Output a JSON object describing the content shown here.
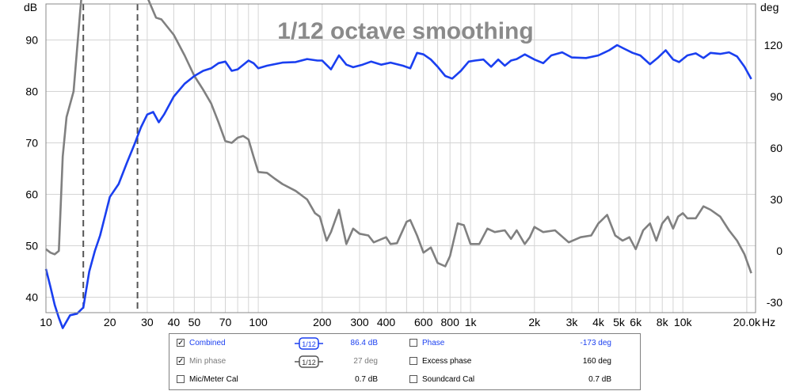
{
  "chart_data": {
    "type": "line",
    "title": "1/12 octave smoothing",
    "xscale": "log",
    "xlim": [
      10,
      22000
    ],
    "xlabel": "Hz",
    "x_tick_labels": [
      "10",
      "20",
      "30",
      "40",
      "50",
      "70",
      "100",
      "200",
      "300",
      "400",
      "600",
      "800",
      "1k",
      "2k",
      "3k",
      "4k",
      "5k",
      "6k",
      "8k",
      "10k",
      "20.0k"
    ],
    "x_tick_values": [
      10,
      20,
      30,
      40,
      50,
      70,
      100,
      200,
      300,
      400,
      600,
      800,
      1000,
      2000,
      3000,
      4000,
      5000,
      6000,
      8000,
      10000,
      20000
    ],
    "ylabel": "dB",
    "ylim": [
      37,
      97
    ],
    "y_ticks": [
      40,
      50,
      60,
      70,
      80,
      90
    ],
    "y2label": "deg",
    "y2lim": [
      -36,
      144
    ],
    "y2_ticks": [
      -30,
      0,
      30,
      60,
      90,
      120
    ],
    "grid": true,
    "markers_hz": [
      15,
      27
    ],
    "series": [
      {
        "name": "Combined",
        "color": "#1a3ff0",
        "axis": "left",
        "points": [
          [
            10,
            45.5
          ],
          [
            10.5,
            42
          ],
          [
            11,
            38.5
          ],
          [
            11.5,
            36
          ],
          [
            12,
            34
          ],
          [
            13,
            36.5
          ],
          [
            14,
            36.8
          ],
          [
            15,
            38
          ],
          [
            16,
            45
          ],
          [
            17,
            49
          ],
          [
            18,
            52
          ],
          [
            20,
            59.5
          ],
          [
            22,
            62
          ],
          [
            24,
            66
          ],
          [
            26,
            69.5
          ],
          [
            28,
            73
          ],
          [
            30,
            75.5
          ],
          [
            32,
            76
          ],
          [
            34,
            74
          ],
          [
            36,
            75.5
          ],
          [
            40,
            79
          ],
          [
            45,
            81.5
          ],
          [
            50,
            83
          ],
          [
            55,
            84
          ],
          [
            60,
            84.5
          ],
          [
            65,
            85.5
          ],
          [
            70,
            85.8
          ],
          [
            75,
            84
          ],
          [
            80,
            84.3
          ],
          [
            90,
            86
          ],
          [
            95,
            85.5
          ],
          [
            100,
            84.5
          ],
          [
            110,
            85
          ],
          [
            130,
            85.6
          ],
          [
            150,
            85.7
          ],
          [
            170,
            86.3
          ],
          [
            190,
            86
          ],
          [
            200,
            86
          ],
          [
            220,
            84.3
          ],
          [
            240,
            87
          ],
          [
            260,
            85.2
          ],
          [
            280,
            84.7
          ],
          [
            310,
            85.2
          ],
          [
            340,
            85.8
          ],
          [
            380,
            85.2
          ],
          [
            420,
            85.6
          ],
          [
            480,
            85
          ],
          [
            520,
            84.5
          ],
          [
            560,
            87.5
          ],
          [
            600,
            87.2
          ],
          [
            650,
            86.2
          ],
          [
            700,
            84.8
          ],
          [
            760,
            83
          ],
          [
            820,
            82.5
          ],
          [
            900,
            84
          ],
          [
            980,
            85.8
          ],
          [
            1050,
            86
          ],
          [
            1150,
            86.2
          ],
          [
            1250,
            84.8
          ],
          [
            1350,
            86.2
          ],
          [
            1450,
            85
          ],
          [
            1550,
            86
          ],
          [
            1650,
            86.3
          ],
          [
            1800,
            87.2
          ],
          [
            2000,
            86.2
          ],
          [
            2200,
            85.5
          ],
          [
            2400,
            87
          ],
          [
            2700,
            87.6
          ],
          [
            3000,
            86.6
          ],
          [
            3500,
            86.5
          ],
          [
            4000,
            87
          ],
          [
            4500,
            88
          ],
          [
            4900,
            89
          ],
          [
            5300,
            88.3
          ],
          [
            5800,
            87.5
          ],
          [
            6300,
            87
          ],
          [
            7000,
            85.3
          ],
          [
            7600,
            86.5
          ],
          [
            8300,
            88
          ],
          [
            9000,
            86.2
          ],
          [
            9600,
            85.7
          ],
          [
            10500,
            87
          ],
          [
            11500,
            87.4
          ],
          [
            12500,
            86.5
          ],
          [
            13500,
            87.5
          ],
          [
            15000,
            87.3
          ],
          [
            16500,
            87.6
          ],
          [
            18000,
            86.8
          ],
          [
            19500,
            84.8
          ],
          [
            21000,
            82.4
          ]
        ]
      },
      {
        "name": "Min phase",
        "color": "#808080",
        "axis": "right",
        "points": [
          [
            10,
            1
          ],
          [
            10.5,
            -1
          ],
          [
            11,
            -2
          ],
          [
            11.5,
            0
          ],
          [
            12,
            55
          ],
          [
            12.5,
            78
          ],
          [
            13.5,
            93
          ],
          [
            14.5,
            140
          ],
          [
            15,
            160
          ],
          [
            30,
            148
          ],
          [
            33,
            136
          ],
          [
            35,
            135
          ],
          [
            40,
            126
          ],
          [
            45,
            114
          ],
          [
            50,
            102
          ],
          [
            55,
            94
          ],
          [
            60,
            86
          ],
          [
            65,
            75
          ],
          [
            70,
            64
          ],
          [
            75,
            63
          ],
          [
            80,
            66
          ],
          [
            85,
            67
          ],
          [
            90,
            65
          ],
          [
            95,
            55
          ],
          [
            100,
            46
          ],
          [
            110,
            45.5
          ],
          [
            120,
            42
          ],
          [
            130,
            39
          ],
          [
            150,
            35
          ],
          [
            170,
            30
          ],
          [
            185,
            22
          ],
          [
            195,
            20
          ],
          [
            210,
            6
          ],
          [
            220,
            11
          ],
          [
            240,
            24
          ],
          [
            260,
            4
          ],
          [
            280,
            13
          ],
          [
            300,
            10
          ],
          [
            330,
            9
          ],
          [
            350,
            5
          ],
          [
            400,
            8
          ],
          [
            420,
            4
          ],
          [
            450,
            4.5
          ],
          [
            500,
            17
          ],
          [
            520,
            18
          ],
          [
            560,
            9
          ],
          [
            600,
            -1
          ],
          [
            650,
            2
          ],
          [
            700,
            -7
          ],
          [
            760,
            -9
          ],
          [
            800,
            -3
          ],
          [
            870,
            16
          ],
          [
            930,
            15
          ],
          [
            1000,
            4
          ],
          [
            1100,
            4
          ],
          [
            1200,
            13
          ],
          [
            1300,
            11
          ],
          [
            1450,
            12
          ],
          [
            1550,
            7
          ],
          [
            1650,
            12
          ],
          [
            1800,
            4
          ],
          [
            1900,
            8
          ],
          [
            2000,
            14
          ],
          [
            2200,
            11
          ],
          [
            2500,
            12
          ],
          [
            2900,
            5
          ],
          [
            3300,
            8
          ],
          [
            3700,
            9
          ],
          [
            4000,
            16
          ],
          [
            4400,
            21
          ],
          [
            4800,
            9
          ],
          [
            5200,
            6
          ],
          [
            5600,
            8
          ],
          [
            6000,
            1
          ],
          [
            6500,
            12
          ],
          [
            7000,
            16
          ],
          [
            7500,
            6
          ],
          [
            8000,
            16
          ],
          [
            8500,
            20
          ],
          [
            9000,
            13
          ],
          [
            9500,
            20
          ],
          [
            10000,
            22
          ],
          [
            10500,
            19
          ],
          [
            11500,
            19
          ],
          [
            12500,
            26
          ],
          [
            13500,
            24
          ],
          [
            15000,
            20
          ],
          [
            16500,
            12
          ],
          [
            18000,
            6
          ],
          [
            19500,
            -2
          ],
          [
            21000,
            -13
          ]
        ]
      }
    ]
  },
  "legend": {
    "rows": [
      {
        "name": "Combined",
        "checked": "✓",
        "smoothing": "1/12",
        "value": "86.4 dB",
        "name2": "Phase",
        "checked2": "",
        "value2": "-173 deg",
        "color": "#1a3ff0",
        "color2": "#1a3ff0"
      },
      {
        "name": "Min phase",
        "checked": "✓",
        "smoothing": "1/12",
        "value": "27 deg",
        "name2": "Excess phase",
        "checked2": "",
        "value2": "160 deg",
        "color": "#7a7a7a",
        "color2": "#000000"
      },
      {
        "name": "Mic/Meter Cal",
        "checked": "",
        "smoothing": "",
        "value": "0.7 dB",
        "name2": "Soundcard Cal",
        "checked2": "",
        "value2": "0.7 dB",
        "color": "#000000",
        "color2": "#000000"
      }
    ]
  }
}
